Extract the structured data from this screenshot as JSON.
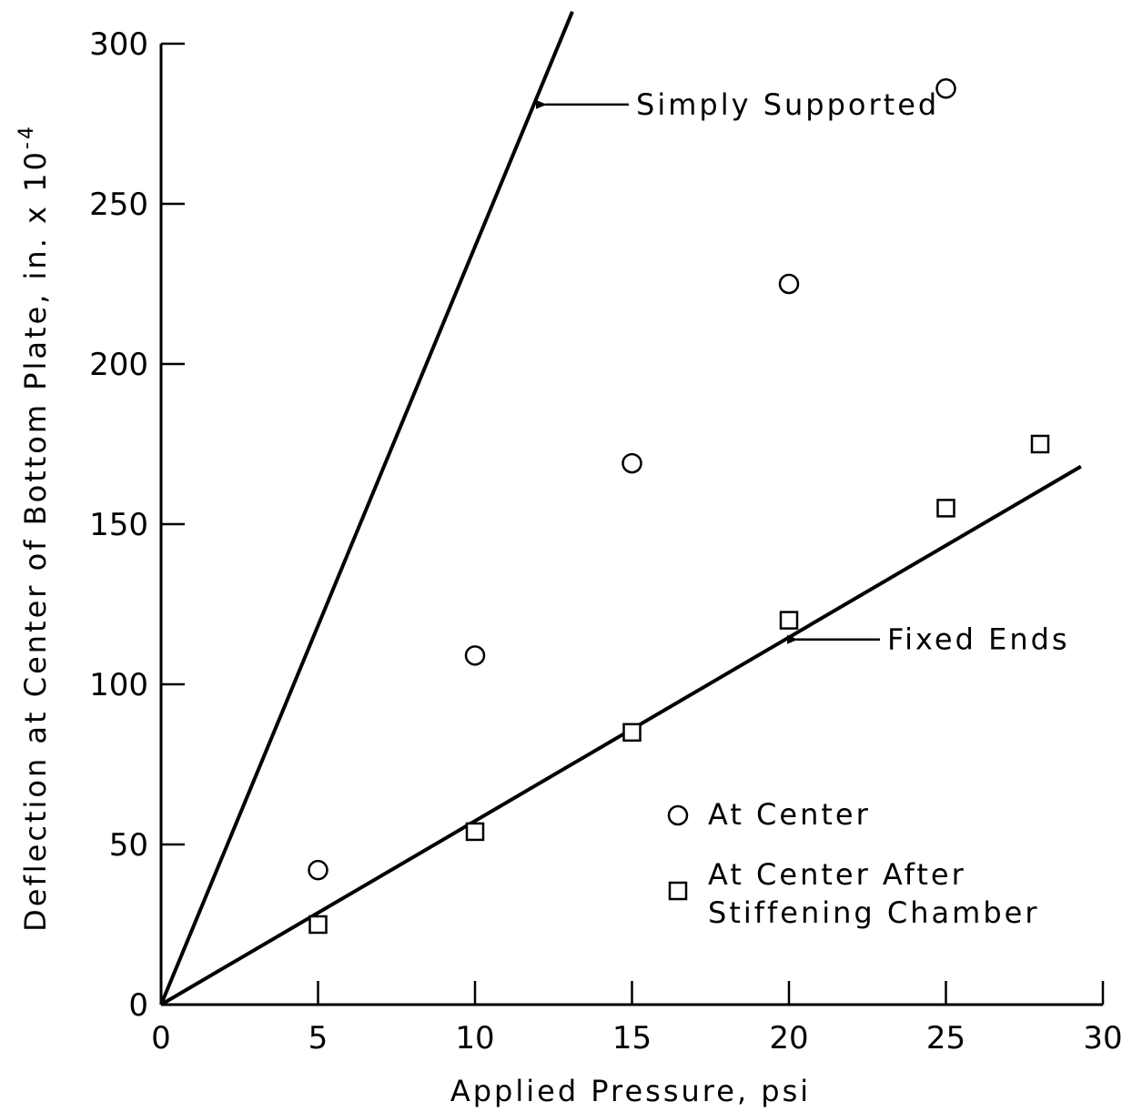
{
  "chart_data": {
    "type": "scatter",
    "xlabel": "Applied Pressure, psi",
    "ylabel": "Deflection at Center of Bottom Plate, in. x 10",
    "ylabel_exponent": "-4",
    "xlim": [
      0,
      30
    ],
    "ylim": [
      0,
      300
    ],
    "xticks": [
      0,
      5,
      10,
      15,
      20,
      25,
      30
    ],
    "yticks": [
      0,
      50,
      100,
      150,
      200,
      250,
      300
    ],
    "grid": false,
    "legend_position": "lower-right",
    "series": [
      {
        "name": "At Center",
        "marker": "circle",
        "x": [
          5,
          10,
          15,
          20,
          25
        ],
        "y": [
          42,
          109,
          169,
          225,
          286
        ]
      },
      {
        "name": "At Center After Stiffening Chamber",
        "name_lines": [
          "At Center After",
          "Stiffening Chamber"
        ],
        "marker": "square",
        "x": [
          5,
          10,
          15,
          20,
          25,
          28
        ],
        "y": [
          25,
          54,
          85,
          120,
          155,
          175
        ]
      }
    ],
    "lines": [
      {
        "label": "Simply Supported",
        "x": [
          0,
          13.1
        ],
        "y": [
          0,
          310
        ]
      },
      {
        "label": "Fixed Ends",
        "x": [
          0,
          29.3
        ],
        "y": [
          0,
          168
        ]
      }
    ],
    "annotations": [
      {
        "text": "Simply Supported",
        "x": 12,
        "y": 281,
        "target_line": 0
      },
      {
        "text": "Fixed Ends",
        "x": 20,
        "y": 114,
        "target_line": 1
      }
    ]
  }
}
